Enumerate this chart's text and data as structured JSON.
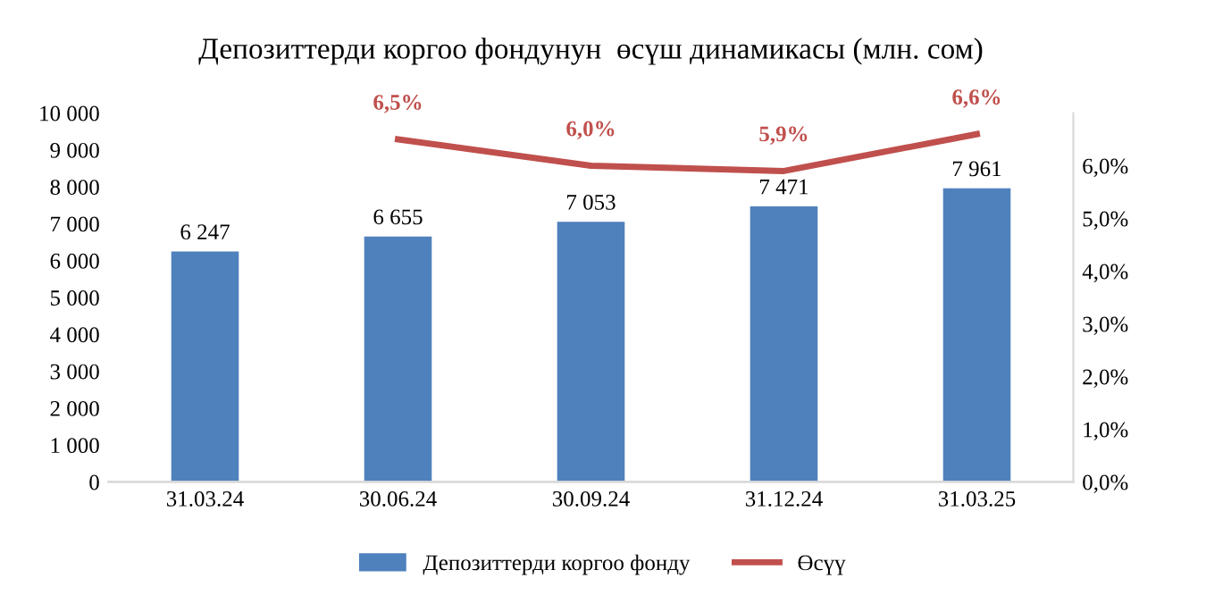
{
  "chart_data": {
    "type": "bar",
    "title": "Депозиттерди коргоо фондунун  өсүш динамикасы (млн. сом)",
    "categories": [
      "31.03.24",
      "30.06.24",
      "30.09.24",
      "31.12.24",
      "31.03.25"
    ],
    "series": [
      {
        "name": "Депозиттерди коргоо фонду",
        "color": "#4f81bd",
        "values": [
          6247,
          6655,
          7053,
          7471,
          7961
        ],
        "value_labels": [
          "6 247",
          "6 655",
          "7 053",
          "7 471",
          "7 961"
        ]
      },
      {
        "name": "Өсүү",
        "type": "line",
        "axis": "y2",
        "color": "#c0504d",
        "values": [
          null,
          6.5,
          6.0,
          5.9,
          6.6
        ],
        "value_labels": [
          null,
          "6,5%",
          "6,0%",
          "5,9%",
          "6,6%"
        ]
      }
    ],
    "ylim": [
      0,
      10000
    ],
    "yticks": [
      {
        "value": 0,
        "label": "0"
      },
      {
        "value": 1000,
        "label": "1 000"
      },
      {
        "value": 2000,
        "label": "2 000"
      },
      {
        "value": 3000,
        "label": "3 000"
      },
      {
        "value": 4000,
        "label": "4 000"
      },
      {
        "value": 5000,
        "label": "5 000"
      },
      {
        "value": 6000,
        "label": "6 000"
      },
      {
        "value": 7000,
        "label": "7 000"
      },
      {
        "value": 8000,
        "label": "8 000"
      },
      {
        "value": 9000,
        "label": "9 000"
      },
      {
        "value": 10000,
        "label": "10 000"
      }
    ],
    "y2lim": [
      0,
      7
    ],
    "y2ticks": [
      {
        "value": 0,
        "label": "0,0%"
      },
      {
        "value": 1,
        "label": "1,0%"
      },
      {
        "value": 2,
        "label": "2,0%"
      },
      {
        "value": 3,
        "label": "3,0%"
      },
      {
        "value": 4,
        "label": "4,0%"
      },
      {
        "value": 5,
        "label": "5,0%"
      },
      {
        "value": 6,
        "label": "6,0%"
      }
    ],
    "grid": false,
    "legend": "bottom"
  }
}
